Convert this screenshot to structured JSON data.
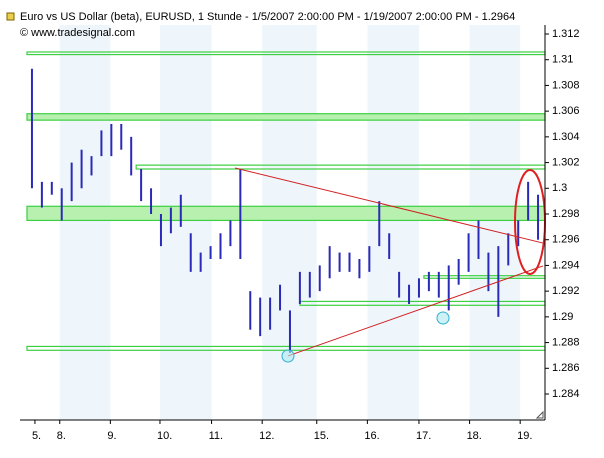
{
  "chart_data": {
    "type": "range-bar",
    "title": "Euro vs US Dollar (beta), EURUSD, 1 Stunde - 1/5/2007 2:00:00 PM - 1/19/2007 2:00:00 PM - 1.2964",
    "subtitle": "© www.tradesignal.com",
    "color": "#2a2ab8",
    "high": [
      1.3093,
      1.3005,
      1.3005,
      1.3,
      1.302,
      1.303,
      1.3025,
      1.3045,
      1.305,
      1.305,
      1.304,
      1.3015,
      1.3,
      1.298,
      1.2985,
      1.2995,
      1.2965,
      1.295,
      1.2955,
      1.2965,
      1.2975,
      1.3015,
      1.292,
      1.2915,
      1.2915,
      1.2925,
      1.2905,
      1.2935,
      1.2935,
      1.294,
      1.2955,
      1.295,
      1.295,
      1.2945,
      1.2955,
      1.299,
      1.2965,
      1.2935,
      1.2925,
      1.293,
      1.2935,
      1.2935,
      1.294,
      1.2945,
      1.2965,
      1.2975,
      1.295,
      1.2955,
      1.2965,
      1.2975,
      1.3005,
      1.2995
    ],
    "low": [
      1.3,
      1.2985,
      1.2995,
      1.2975,
      1.299,
      1.3,
      1.301,
      1.3025,
      1.3025,
      1.303,
      1.301,
      1.299,
      1.298,
      1.2955,
      1.2965,
      1.297,
      1.2935,
      1.2935,
      1.2945,
      1.2945,
      1.2955,
      1.2945,
      1.289,
      1.2885,
      1.289,
      1.2905,
      1.2872,
      1.291,
      1.2915,
      1.292,
      1.293,
      1.2935,
      1.2935,
      1.293,
      1.2935,
      1.2955,
      1.2945,
      1.2915,
      1.291,
      1.2915,
      1.292,
      1.2915,
      1.2905,
      1.2925,
      1.2935,
      1.2945,
      1.292,
      1.29,
      1.294,
      1.2955,
      1.2975,
      1.296
    ],
    "zones": [
      {
        "low": 1.3104,
        "high": 1.3106,
        "start": 0
      },
      {
        "low": 1.3053,
        "high": 1.3058,
        "start": 0
      },
      {
        "low": 1.3015,
        "high": 1.3018,
        "start": 11
      },
      {
        "low": 1.2975,
        "high": 1.2986,
        "start": 0
      },
      {
        "low": 1.293,
        "high": 1.2932,
        "start": 40
      },
      {
        "low": 1.2909,
        "high": 1.2912,
        "start": 27.5
      },
      {
        "low": 1.2874,
        "high": 1.2877,
        "start": 0
      }
    ],
    "trendlines": [
      {
        "x": [
          20.97,
          52
        ],
        "y": [
          1.30158,
          1.29574
        ]
      },
      {
        "x": [
          26.3,
          52
        ],
        "y": [
          1.28696,
          1.29396
        ]
      }
    ],
    "xlim": [
      0,
      52
    ],
    "xticks": [
      {
        "value": 0.8,
        "label": "5."
      },
      {
        "value": 3.3,
        "label": "8."
      },
      {
        "value": 8.4,
        "label": "9."
      },
      {
        "value": 13.4,
        "label": "10."
      },
      {
        "value": 18.6,
        "label": "11."
      },
      {
        "value": 23.7,
        "label": "12."
      },
      {
        "value": 29.2,
        "label": "15."
      },
      {
        "value": 34.3,
        "label": "16."
      },
      {
        "value": 39.5,
        "label": "17."
      },
      {
        "value": 44.6,
        "label": "18."
      },
      {
        "value": 49.7,
        "label": "19."
      }
    ],
    "ylim": [
      1.284,
      1.312
    ],
    "yticks": [
      1.284,
      1.286,
      1.288,
      1.29,
      1.292,
      1.294,
      1.296,
      1.298,
      1.3,
      1.302,
      1.304,
      1.306,
      1.308,
      1.31,
      1.312
    ]
  }
}
